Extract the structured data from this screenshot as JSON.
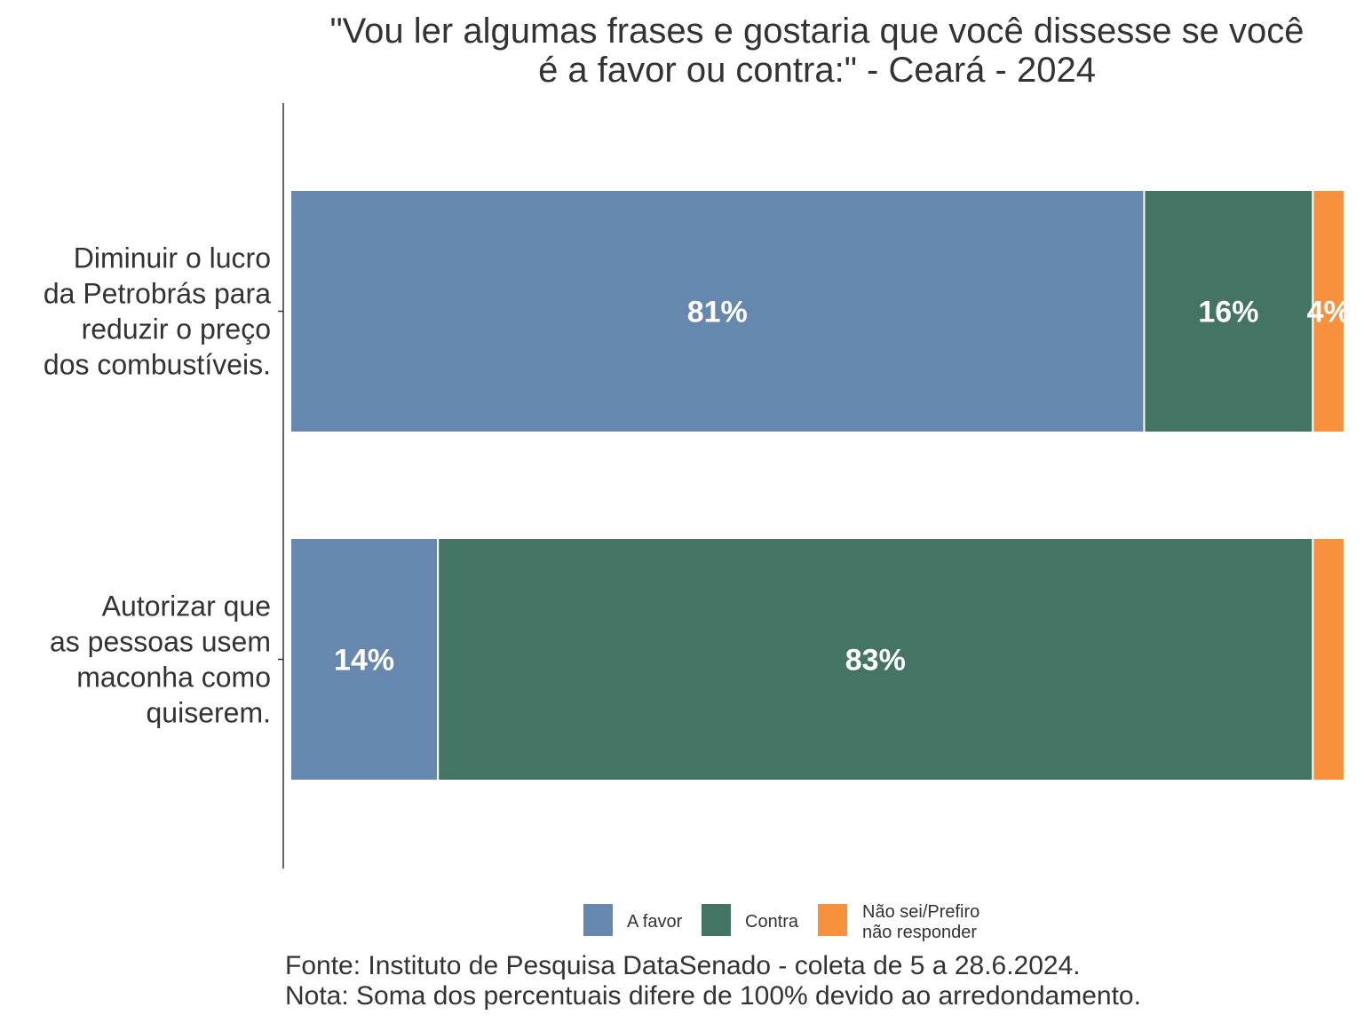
{
  "chart_data": {
    "type": "bar",
    "orientation": "horizontal",
    "stacked": true,
    "title": "\"Vou ler algumas frases e gostaria que você dissesse se você é a favor ou contra:\" - Ceará - 2024",
    "title_lines": [
      "\"Vou ler algumas frases e gostaria que você dissesse se você",
      "é a favor ou contra:\" - Ceará - 2024"
    ],
    "categories": [
      {
        "label": "Diminuir o lucro da Petrobrás para reduzir o preço dos combustíveis.",
        "label_lines": [
          "Diminuir o lucro",
          "da Petrobrás para",
          "reduzir o preço",
          "dos combustíveis."
        ]
      },
      {
        "label": "Autorizar que as pessoas usem maconha como quiserem.",
        "label_lines": [
          "Autorizar que",
          "as pessoas usem",
          "maconha como",
          "quiserem."
        ]
      }
    ],
    "series": [
      {
        "name": "A favor",
        "color": "#6688AE",
        "values": [
          81,
          14
        ],
        "labels": [
          "81%",
          "14%"
        ]
      },
      {
        "name": "Contra",
        "color": "#447564",
        "values": [
          16,
          83
        ],
        "labels": [
          "16%",
          "83%"
        ]
      },
      {
        "name": "Não sei/Prefiro não responder",
        "name_lines": [
          "Não sei/Prefiro",
          "não responder"
        ],
        "color": "#F8913E",
        "values": [
          4,
          3
        ],
        "labels": [
          "4%",
          ""
        ]
      }
    ],
    "xlim": [
      0,
      100
    ],
    "grid": false,
    "legend_position": "bottom",
    "caption_lines": [
      "Fonte: Instituto de Pesquisa DataSenado - coleta de 5 a 28.6.2024.",
      "Nota: Soma dos percentuais difere de 100% devido ao arredondamento."
    ]
  }
}
